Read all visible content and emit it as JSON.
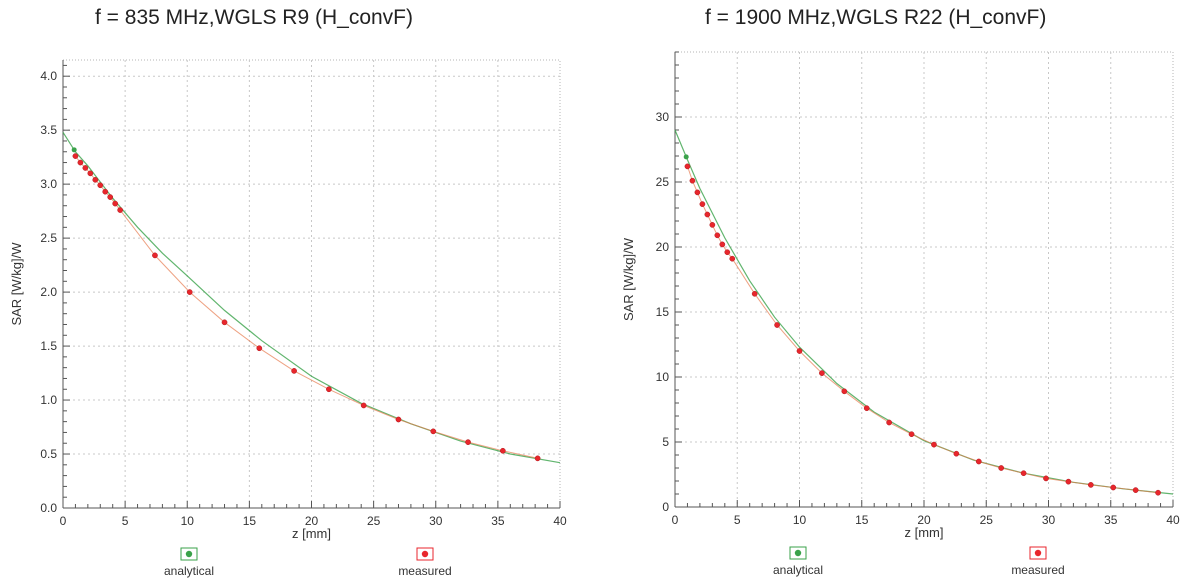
{
  "chart_data": [
    {
      "type": "scatter",
      "title": "f = 835 MHz,WGLS R9 (H_convF)",
      "xlabel": "z [mm]",
      "ylabel": "SAR [W/kg]/W",
      "xlim": [
        0,
        40
      ],
      "ylim": [
        0,
        4.15
      ],
      "xticks": [
        0,
        5,
        10,
        15,
        20,
        25,
        30,
        35,
        40
      ],
      "xtick_labels": [
        "0",
        "5",
        "10",
        "15",
        "20",
        "25",
        "30",
        "35",
        "40"
      ],
      "yticks": [
        0,
        0.5,
        1.0,
        1.5,
        2.0,
        2.5,
        3.0,
        3.5,
        4.0
      ],
      "ytick_labels": [
        "0.0",
        "0.5",
        "1.0",
        "1.5",
        "2.0",
        "2.5",
        "3.0",
        "3.5",
        "4.0"
      ],
      "grid": true,
      "legend_position": "bottom",
      "series": [
        {
          "name": "analytical",
          "color": "#3aa24a",
          "style": "line",
          "x": [
            0,
            1,
            2,
            4,
            6,
            8,
            10,
            13,
            16,
            20,
            24,
            28,
            32,
            36,
            40
          ],
          "y": [
            3.48,
            3.3,
            3.17,
            2.87,
            2.6,
            2.36,
            2.15,
            1.83,
            1.55,
            1.22,
            0.97,
            0.78,
            0.62,
            0.5,
            0.42
          ]
        },
        {
          "name": "measured",
          "color": "#e8262c",
          "style": "markers",
          "x": [
            1.0,
            1.4,
            1.8,
            2.2,
            2.6,
            3.0,
            3.4,
            3.8,
            4.2,
            4.6,
            7.4,
            10.2,
            13.0,
            15.8,
            18.6,
            21.4,
            24.2,
            27.0,
            29.8,
            32.6,
            35.4,
            38.2
          ],
          "y": [
            3.26,
            3.2,
            3.15,
            3.1,
            3.04,
            2.99,
            2.93,
            2.88,
            2.82,
            2.76,
            2.34,
            2.0,
            1.72,
            1.48,
            1.27,
            1.1,
            0.95,
            0.82,
            0.71,
            0.61,
            0.53,
            0.46
          ]
        }
      ]
    },
    {
      "type": "scatter",
      "title": "f = 1900 MHz,WGLS R22 (H_convF)",
      "xlabel": "z [mm]",
      "ylabel": "SAR [W/kg]/W",
      "xlim": [
        0,
        40
      ],
      "ylim": [
        0,
        35
      ],
      "xticks": [
        0,
        5,
        10,
        15,
        20,
        25,
        30,
        35,
        40
      ],
      "xtick_labels": [
        "0",
        "5",
        "10",
        "15",
        "20",
        "25",
        "30",
        "35",
        "40"
      ],
      "yticks": [
        0,
        5,
        10,
        15,
        20,
        25,
        30
      ],
      "ytick_labels": [
        "0",
        "5",
        "10",
        "15",
        "20",
        "25",
        "30"
      ],
      "grid": true,
      "legend_position": "bottom",
      "series": [
        {
          "name": "analytical",
          "color": "#3aa24a",
          "style": "line",
          "x": [
            0,
            1,
            2,
            4,
            6,
            8,
            10,
            13,
            16,
            20,
            24,
            28,
            32,
            36,
            40
          ],
          "y": [
            29.0,
            26.7,
            24.5,
            20.7,
            17.4,
            14.6,
            12.3,
            9.5,
            7.3,
            5.1,
            3.6,
            2.6,
            1.9,
            1.4,
            1.0
          ]
        },
        {
          "name": "measured",
          "color": "#e8262c",
          "style": "markers",
          "x": [
            1.0,
            1.4,
            1.8,
            2.2,
            2.6,
            3.0,
            3.4,
            3.8,
            4.2,
            4.6,
            6.4,
            8.2,
            10.0,
            11.8,
            13.6,
            15.4,
            17.2,
            19.0,
            20.8,
            22.6,
            24.4,
            26.2,
            28.0,
            29.8,
            31.6,
            33.4,
            35.2,
            37.0,
            38.8
          ],
          "y": [
            26.2,
            25.1,
            24.2,
            23.3,
            22.5,
            21.7,
            20.9,
            20.2,
            19.6,
            19.1,
            16.4,
            14.0,
            12.0,
            10.3,
            8.9,
            7.6,
            6.5,
            5.6,
            4.8,
            4.1,
            3.5,
            3.0,
            2.6,
            2.2,
            1.95,
            1.7,
            1.5,
            1.3,
            1.1
          ]
        }
      ]
    }
  ]
}
